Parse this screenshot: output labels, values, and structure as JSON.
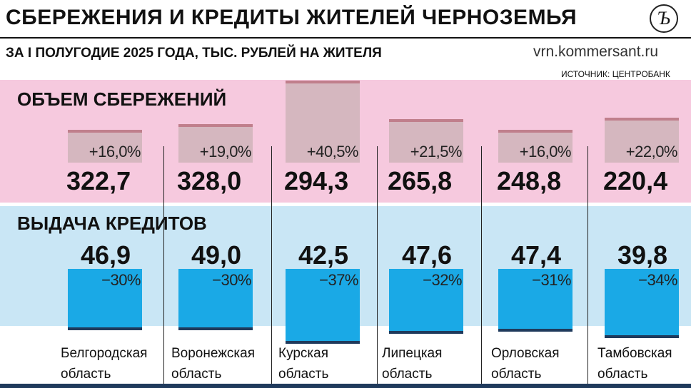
{
  "header": {
    "title": "СБЕРЕЖЕНИЯ И КРЕДИТЫ ЖИТЕЛЕЙ ЧЕРНОЗЕМЬЯ",
    "subtitle": "ЗА I ПОЛУГОДИЕ 2025 ГОДА, ТЫС. РУБЛЕЙ НА ЖИТЕЛЯ",
    "site": "vrn.kommersant.ru",
    "source": "ИСТОЧНИК: ЦЕНТРОБАНК",
    "logo": "Ъ"
  },
  "colors": {
    "savings_band": "#f6c9de",
    "loans_band": "#c9e6f5",
    "savings_bar": "#d5b7bf",
    "loans_bar": "#1aa9e6"
  },
  "chart_data": {
    "type": "bar",
    "categories": [
      [
        "Белгородская",
        "область"
      ],
      [
        "Воронежская",
        "область"
      ],
      [
        "Курская",
        "область"
      ],
      [
        "Липецкая",
        "область"
      ],
      [
        "Орловская",
        "область"
      ],
      [
        "Тамбовская",
        "область"
      ]
    ],
    "series": [
      {
        "name": "ОБЪЕМ СБЕРЕЖЕНИЙ",
        "values": [
          "322,7",
          "328,0",
          "294,3",
          "265,8",
          "248,8",
          "220,4"
        ],
        "change": [
          "+16,0%",
          "+19,0%",
          "+40,5%",
          "+21,5%",
          "+16,0%",
          "+22,0%"
        ],
        "change_values": [
          16.0,
          19.0,
          40.5,
          21.5,
          16.0,
          22.0
        ]
      },
      {
        "name": "ВЫДАЧА КРЕДИТОВ",
        "values": [
          "46,9",
          "49,0",
          "42,5",
          "47,6",
          "47,4",
          "39,8"
        ],
        "change": [
          "−30%",
          "−30%",
          "−37%",
          "−32%",
          "−31%",
          "−34%"
        ],
        "change_values": [
          -30,
          -30,
          -37,
          -32,
          -31,
          -34
        ]
      }
    ]
  }
}
